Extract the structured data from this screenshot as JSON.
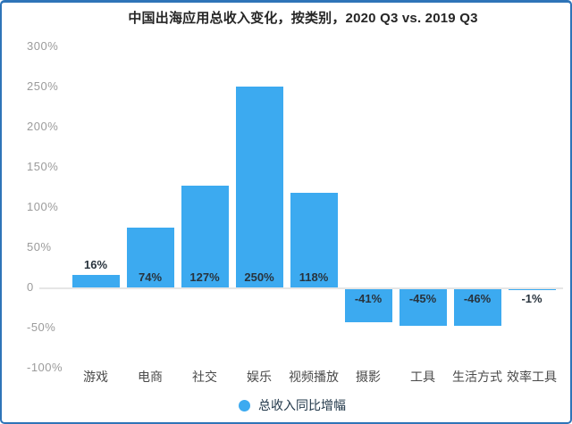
{
  "frame": {
    "border_color": "#2e74b8",
    "background": "#ffffff"
  },
  "chart_data": {
    "type": "bar",
    "title": "中国出海应用总收入变化，按类别，2020 Q3 vs. 2019 Q3",
    "categories": [
      "游戏",
      "电商",
      "社交",
      "娱乐",
      "视频播放",
      "摄影",
      "工具",
      "生活方式",
      "效率工具"
    ],
    "values": [
      16,
      74,
      127,
      250,
      118,
      -41,
      -45,
      -46,
      -1
    ],
    "value_labels": [
      "16%",
      "74%",
      "127%",
      "250%",
      "118%",
      "-41%",
      "-45%",
      "-46%",
      "-1%"
    ],
    "xlabel": "",
    "ylabel": "",
    "ylim": [
      -100,
      300
    ],
    "y_ticks": [
      {
        "label": "300%",
        "value": 300
      },
      {
        "label": "250%",
        "value": 250
      },
      {
        "label": "200%",
        "value": 200
      },
      {
        "label": "150%",
        "value": 150
      },
      {
        "label": "100%",
        "value": 100
      },
      {
        "label": "50%",
        "value": 50
      },
      {
        "label": "0",
        "value": 0
      },
      {
        "label": "-50%",
        "value": -50
      },
      {
        "label": "-100%",
        "value": -100
      }
    ],
    "grid": false,
    "bar_color": "#3caaf0",
    "value_label_color": "#28333d",
    "axis_line_color": "#e6e6e6",
    "legend_position": "bottom",
    "legend": [
      {
        "label": "总收入同比增幅",
        "color": "#3caaf0"
      }
    ]
  }
}
